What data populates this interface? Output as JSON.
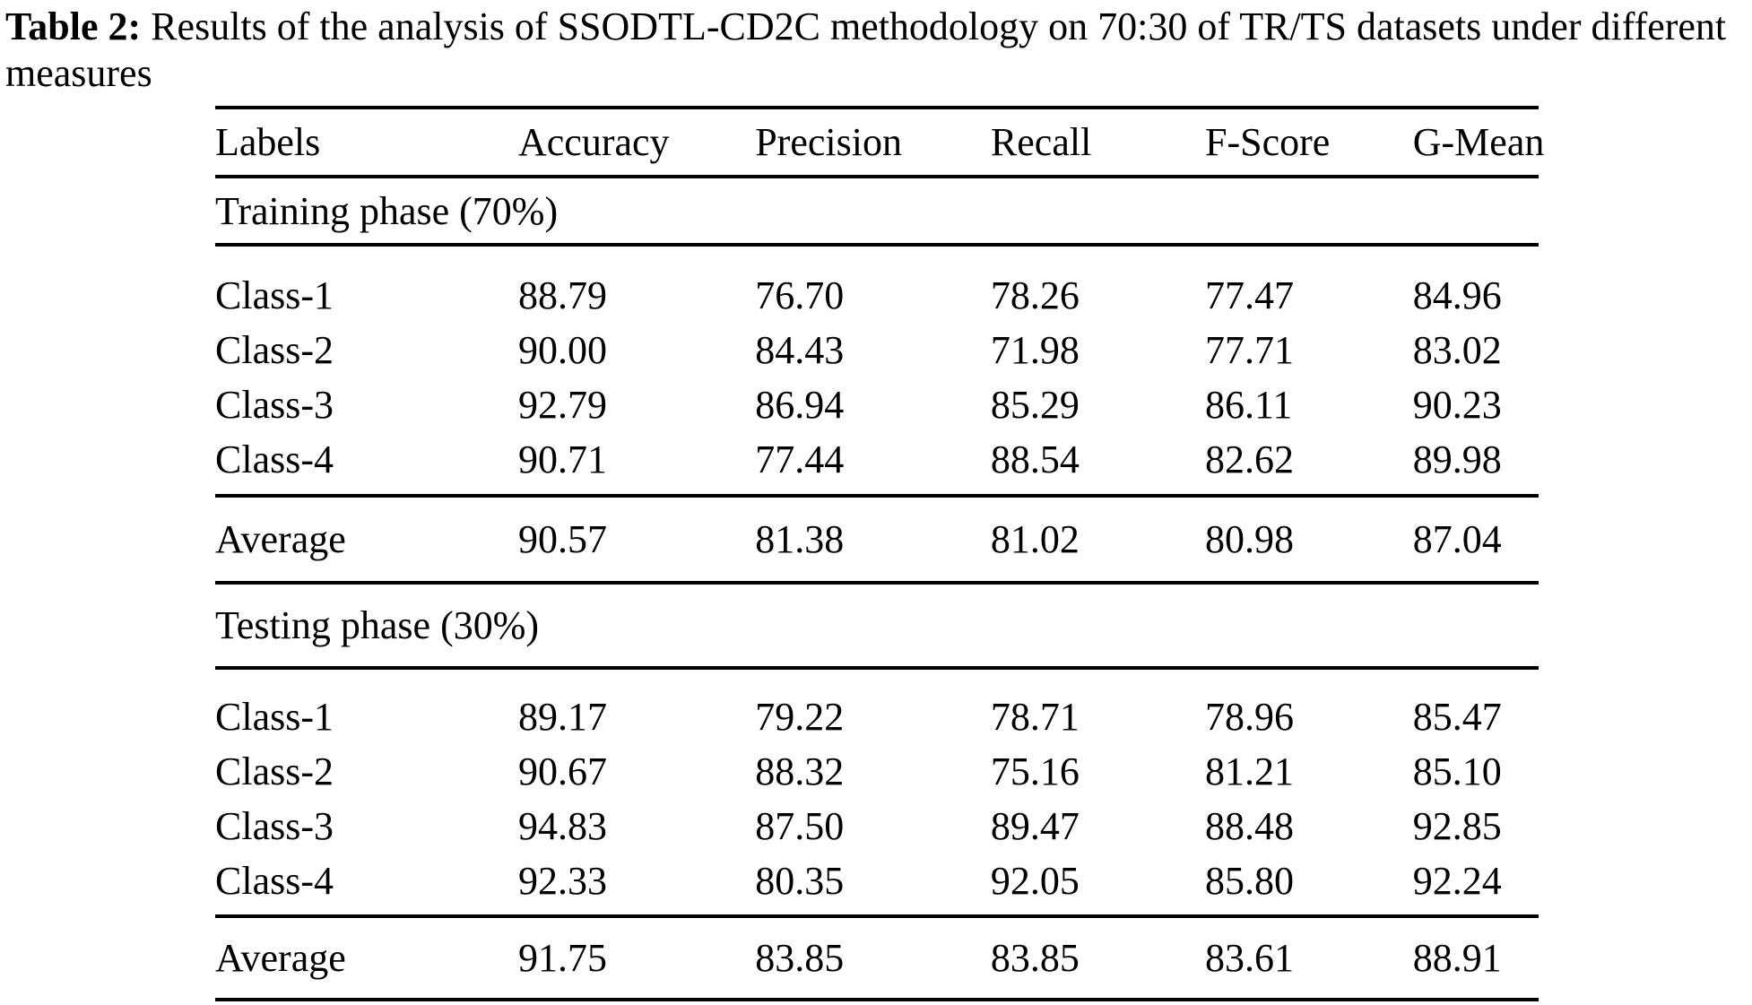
{
  "caption": {
    "label": "Table 2:",
    "text": "Results of the analysis of SSODTL-CD2C methodology on 70:30 of TR/TS datasets under different measures"
  },
  "table": {
    "columns": [
      "Labels",
      "Accuracy",
      "Precision",
      "Recall",
      "F-Score",
      "G-Mean"
    ],
    "sections": [
      {
        "heading": "Training phase (70%)",
        "rows": [
          {
            "label": "Class-1",
            "values": [
              "88.79",
              "76.70",
              "78.26",
              "77.47",
              "84.96"
            ]
          },
          {
            "label": "Class-2",
            "values": [
              "90.00",
              "84.43",
              "71.98",
              "77.71",
              "83.02"
            ]
          },
          {
            "label": "Class-3",
            "values": [
              "92.79",
              "86.94",
              "85.29",
              "86.11",
              "90.23"
            ]
          },
          {
            "label": "Class-4",
            "values": [
              "90.71",
              "77.44",
              "88.54",
              "82.62",
              "89.98"
            ]
          }
        ],
        "average": {
          "label": "Average",
          "values": [
            "90.57",
            "81.38",
            "81.02",
            "80.98",
            "87.04"
          ]
        }
      },
      {
        "heading": "Testing phase (30%)",
        "rows": [
          {
            "label": "Class-1",
            "values": [
              "89.17",
              "79.22",
              "78.71",
              "78.96",
              "85.47"
            ]
          },
          {
            "label": "Class-2",
            "values": [
              "90.67",
              "88.32",
              "75.16",
              "81.21",
              "85.10"
            ]
          },
          {
            "label": "Class-3",
            "values": [
              "94.83",
              "87.50",
              "89.47",
              "88.48",
              "92.85"
            ]
          },
          {
            "label": "Class-4",
            "values": [
              "92.33",
              "80.35",
              "92.05",
              "85.80",
              "92.24"
            ]
          }
        ],
        "average": {
          "label": "Average",
          "values": [
            "91.75",
            "83.85",
            "83.85",
            "83.61",
            "88.91"
          ]
        }
      }
    ]
  },
  "colors": {
    "text": "#000000",
    "background": "#ffffff",
    "rule": "#000000"
  }
}
